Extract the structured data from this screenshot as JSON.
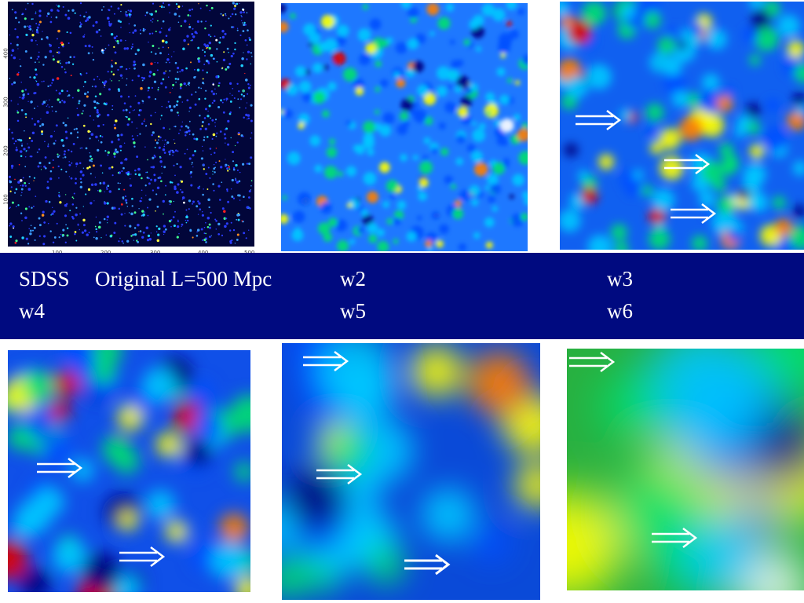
{
  "labels": {
    "row1": {
      "col1_survey": "SDSS",
      "col1_original": "Original L=500 Mpc",
      "col2": "w2",
      "col3": "w3"
    },
    "row2": {
      "col1": "w4",
      "col2": "w5",
      "col3": "w6"
    }
  },
  "sdss_axis": {
    "x_ticks": [
      "100",
      "200",
      "300",
      "400",
      "500"
    ],
    "y_ticks": [
      "100",
      "200",
      "300",
      "400"
    ]
  },
  "colors": {
    "band": "#000a80",
    "colormap": [
      "#000080",
      "#0050ff",
      "#00c8ff",
      "#00e070",
      "#ffff00",
      "#ff8000",
      "#e00000",
      "#ffffff"
    ]
  }
}
